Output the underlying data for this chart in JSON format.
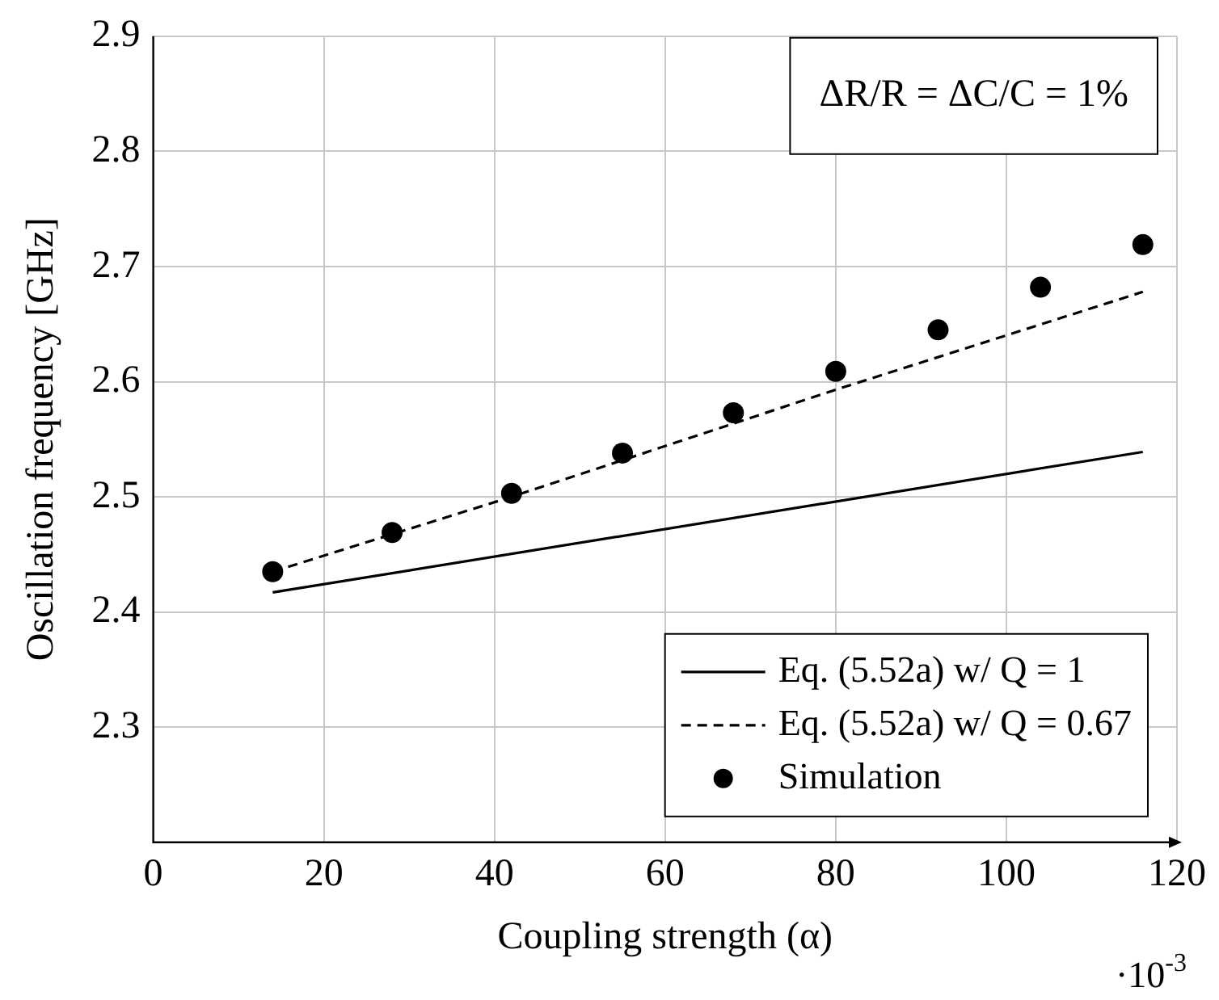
{
  "chart_data": {
    "type": "line",
    "xlabel": "Coupling strength (α)",
    "ylabel": "Oscillation frequency [GHz]",
    "xlim": [
      0,
      120
    ],
    "xticks": [
      0,
      20,
      40,
      60,
      80,
      100,
      120
    ],
    "ylim": [
      2.2,
      2.9
    ],
    "yticks": [
      2.3,
      2.4,
      2.5,
      2.6,
      2.7,
      2.8,
      2.9
    ],
    "grid": true,
    "legend": "bottom right",
    "annotations": [
      "ΔR/R = ΔC/C = 1%",
      "·10$^{-3}$"
    ],
    "series": [
      {
        "name": "Eq. (5.52a) w/ Q = 1",
        "color": "#000000",
        "line_style": "solid",
        "marker": "none",
        "x": [
          14,
          116
        ],
        "values": [
          2.417,
          2.539
        ]
      },
      {
        "name": "Eq. (5.52a) w/ Q = 0.67",
        "color": "#000000",
        "line_style": "dashed",
        "marker": "none",
        "x": [
          14,
          42,
          80,
          116
        ],
        "values": [
          2.435,
          2.5,
          2.593,
          2.678
        ]
      },
      {
        "name": "Simulation",
        "type": "scatter",
        "color": "#000000",
        "marker": "circle",
        "x": [
          14,
          28,
          42,
          55,
          68,
          80,
          92,
          104,
          116
        ],
        "values": [
          2.435,
          2.469,
          2.503,
          2.538,
          2.573,
          2.609,
          2.645,
          2.682,
          2.719
        ]
      }
    ]
  }
}
